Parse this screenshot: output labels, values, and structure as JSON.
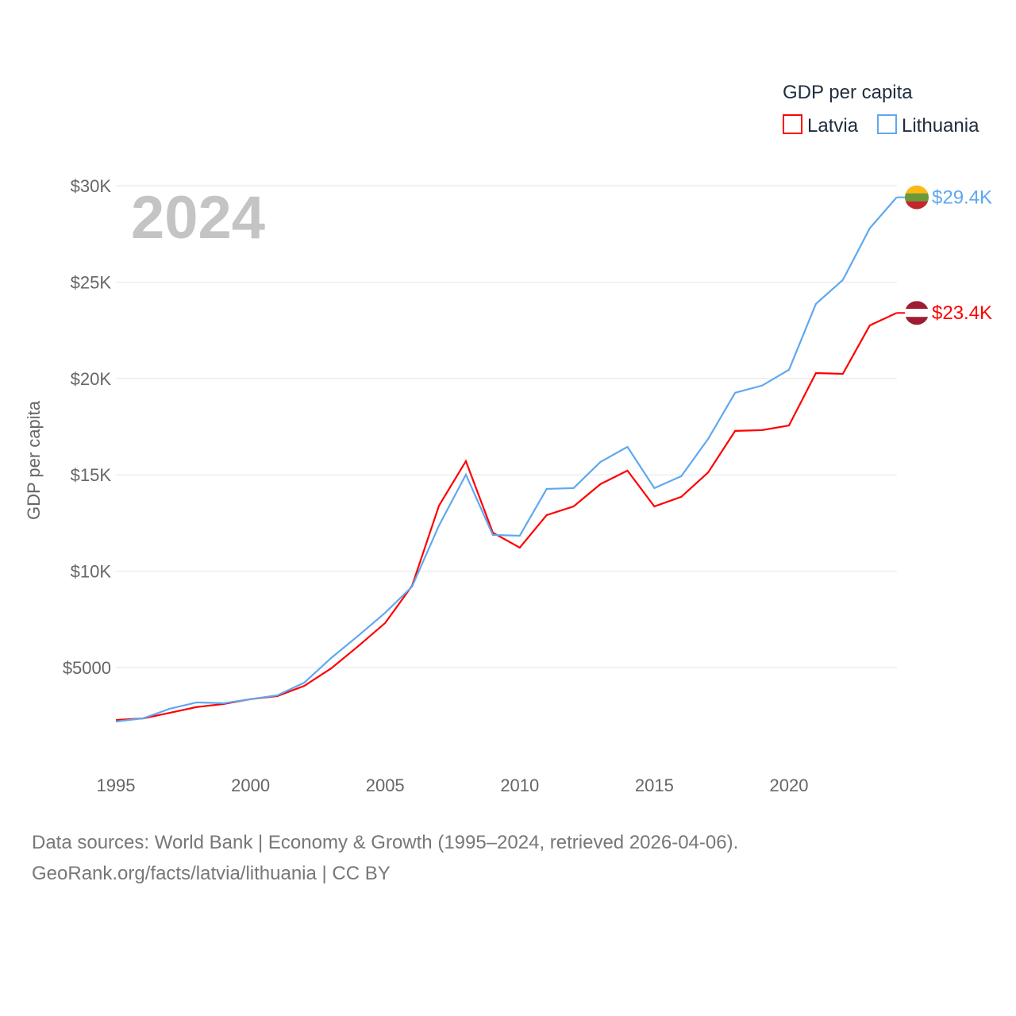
{
  "chart_data": {
    "type": "line",
    "title": "GDP per capita",
    "year_label": "2024",
    "ylabel": "GDP per capita",
    "xlabel": "",
    "ylim": [
      0,
      30000
    ],
    "xlim": [
      1995,
      2024
    ],
    "grid": true,
    "legend_placement": "top-right",
    "x_ticks": [
      1995,
      2000,
      2005,
      2010,
      2015,
      2020
    ],
    "x_tick_labels": [
      "1995",
      "2000",
      "2005",
      "2010",
      "2015",
      "2020"
    ],
    "y_ticks": [
      5000,
      10000,
      15000,
      20000,
      25000,
      30000
    ],
    "y_tick_labels": [
      "$5000",
      "$10K",
      "$15K",
      "$20K",
      "$25K",
      "$30K"
    ],
    "x": [
      1995,
      1996,
      1997,
      1998,
      1999,
      2000,
      2001,
      2002,
      2003,
      2004,
      2005,
      2006,
      2007,
      2008,
      2009,
      2010,
      2011,
      2012,
      2013,
      2014,
      2015,
      2016,
      2017,
      2018,
      2019,
      2020,
      2021,
      2022,
      2023,
      2024
    ],
    "series": [
      {
        "name": "Latvia",
        "color": "#ff0000",
        "end_label": "$23.4K",
        "flag": [
          "#9e1b32",
          "#ffffff",
          "#9e1b32"
        ],
        "values": [
          2280,
          2360,
          2650,
          2950,
          3110,
          3360,
          3520,
          4050,
          4960,
          6110,
          7310,
          9240,
          13400,
          15710,
          12000,
          11220,
          12910,
          13360,
          14520,
          15220,
          13360,
          13860,
          15130,
          17280,
          17320,
          17560,
          20280,
          20240,
          22750,
          23400
        ]
      },
      {
        "name": "Lithuania",
        "color": "#5fa8f0",
        "end_label": "$29.4K",
        "flag": [
          "#fdb913",
          "#6a9a3a",
          "#c1272d"
        ],
        "values": [
          2200,
          2360,
          2860,
          3190,
          3150,
          3360,
          3560,
          4220,
          5500,
          6650,
          7840,
          9200,
          12370,
          15010,
          11880,
          11840,
          14270,
          14310,
          15670,
          16450,
          14310,
          14930,
          16870,
          19260,
          19630,
          20450,
          23870,
          25110,
          27790,
          29400
        ]
      }
    ]
  },
  "footer": {
    "line1": "Data sources: World Bank | Economy & Growth (1995–2024, retrieved 2026-04-06).",
    "line2": "GeoRank.org/facts/latvia/lithuania | CC BY"
  }
}
